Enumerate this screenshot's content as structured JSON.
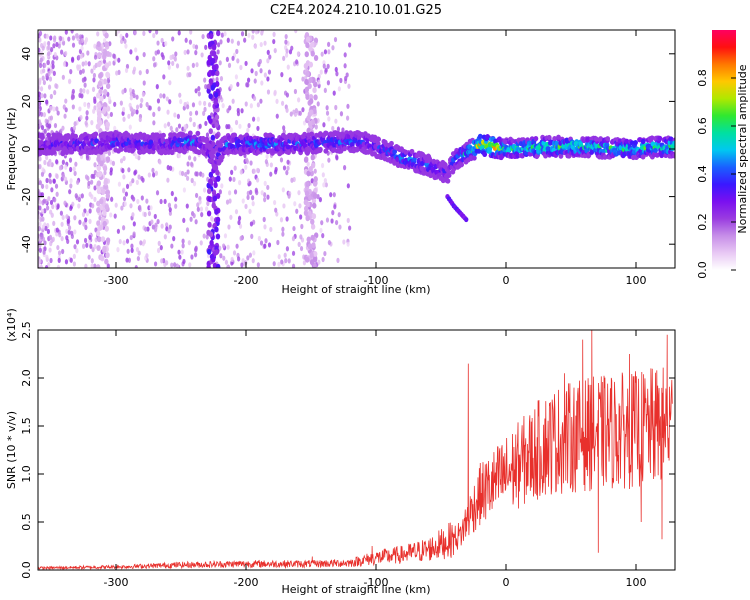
{
  "title": "C2E4.2024.210.10.01.G25",
  "colors": {
    "snr_line": "#e8302c",
    "axes": "#000000",
    "colormap": [
      "#ffffff",
      "#e8c8f4",
      "#c68ee8",
      "#9a3ce0",
      "#7a10f0",
      "#3a18ff",
      "#1a60ff",
      "#00c8f0",
      "#00e0a0",
      "#30e830",
      "#b0e800",
      "#ffc800",
      "#ff7800",
      "#ff1010",
      "#ff0060"
    ]
  },
  "chart_data": [
    {
      "type": "heatmap",
      "xlabel": "Height of straight line (km)",
      "ylabel": "Frequency (Hz)",
      "xlim": [
        -360,
        130
      ],
      "ylim": [
        -50,
        50
      ],
      "xticks": [
        -300,
        -200,
        -100,
        0,
        100
      ],
      "yticks": [
        -40,
        -20,
        0,
        20,
        40
      ],
      "xtick_labels": [
        "-300",
        "-200",
        "-100",
        "0",
        "100"
      ],
      "ytick_labels": [
        "-40",
        "-20",
        "0",
        "20",
        "40"
      ],
      "colorbar": {
        "label": "Normalized spectral amplitude",
        "range": [
          0,
          1
        ],
        "ticks": [
          0.0,
          0.2,
          0.4,
          0.6,
          0.8
        ],
        "tick_labels": [
          "0.0",
          "0.2",
          "0.4",
          "0.6",
          "0.8"
        ]
      },
      "ridge": {
        "x": [
          -355,
          -330,
          -300,
          -270,
          -240,
          -232,
          -225,
          -215,
          -190,
          -160,
          -130,
          -110,
          -100,
          -90,
          -80,
          -70,
          -60,
          -50,
          -45,
          -40,
          -35,
          -25,
          -20,
          -10,
          0,
          30,
          60,
          90,
          125
        ],
        "y": [
          2,
          2,
          3,
          2,
          3,
          2,
          -5,
          2,
          2,
          2,
          3,
          3,
          1,
          -1,
          -4,
          -5,
          -7,
          -9,
          -10,
          -5,
          -3,
          0,
          2,
          1,
          0,
          1,
          1,
          0,
          1
        ],
        "amplitude": [
          0.3,
          0.35,
          0.4,
          0.35,
          0.45,
          0.3,
          0.3,
          0.4,
          0.45,
          0.4,
          0.4,
          0.4,
          0.35,
          0.4,
          0.45,
          0.45,
          0.4,
          0.35,
          0.3,
          0.4,
          0.5,
          0.6,
          0.75,
          0.85,
          0.55,
          0.6,
          0.6,
          0.55,
          0.6
        ]
      },
      "branch": {
        "x": [
          -45,
          -40,
          -35,
          -30
        ],
        "y": [
          -20,
          -24,
          -27,
          -30
        ]
      },
      "vertical_streaks": [
        {
          "x": -225,
          "amplitude": 0.3
        },
        {
          "x": -150,
          "amplitude": 0.12
        },
        {
          "x": -310,
          "amplitude": 0.1
        }
      ]
    },
    {
      "type": "line",
      "xlabel": "Height of straight line (km)",
      "ylabel": "SNR (10 * v/v)",
      "y_exponent_label": "(x10⁴)",
      "xlim": [
        -360,
        130
      ],
      "ylim": [
        0,
        2.5
      ],
      "xticks": [
        -300,
        -200,
        -100,
        0,
        100
      ],
      "yticks": [
        0.0,
        0.5,
        1.0,
        1.5,
        2.0,
        2.5
      ],
      "xtick_labels": [
        "-300",
        "-200",
        "-100",
        "0",
        "100"
      ],
      "ytick_labels": [
        "0.0",
        "0.5",
        "1.0",
        "1.5",
        "2.0",
        "2.5"
      ],
      "series": [
        {
          "trend_x": [
            -360,
            -300,
            -250,
            -200,
            -150,
            -120,
            -100,
            -80,
            -60,
            -45,
            -35,
            -30,
            -20,
            -10,
            0,
            10,
            20,
            30,
            40,
            60,
            80,
            100,
            128
          ],
          "trend_y": [
            0.02,
            0.03,
            0.05,
            0.06,
            0.06,
            0.07,
            0.12,
            0.15,
            0.2,
            0.28,
            0.35,
            0.5,
            0.75,
            0.85,
            0.95,
            1.05,
            1.15,
            1.25,
            1.3,
            1.35,
            1.38,
            1.4,
            1.45
          ],
          "spikes": [
            {
              "x": -149,
              "y": 0.14
            },
            {
              "x": -103,
              "y": 0.25
            },
            {
              "x": -29,
              "y": 2.15
            },
            {
              "x": 45,
              "y": 2.05
            },
            {
              "x": 59,
              "y": 2.4
            },
            {
              "x": 66,
              "y": 2.55
            },
            {
              "x": 71,
              "y": 0.18
            },
            {
              "x": 95,
              "y": 2.25
            },
            {
              "x": 104,
              "y": 0.5
            },
            {
              "x": 124,
              "y": 2.45
            },
            {
              "x": 120,
              "y": 0.32
            }
          ]
        }
      ]
    }
  ]
}
